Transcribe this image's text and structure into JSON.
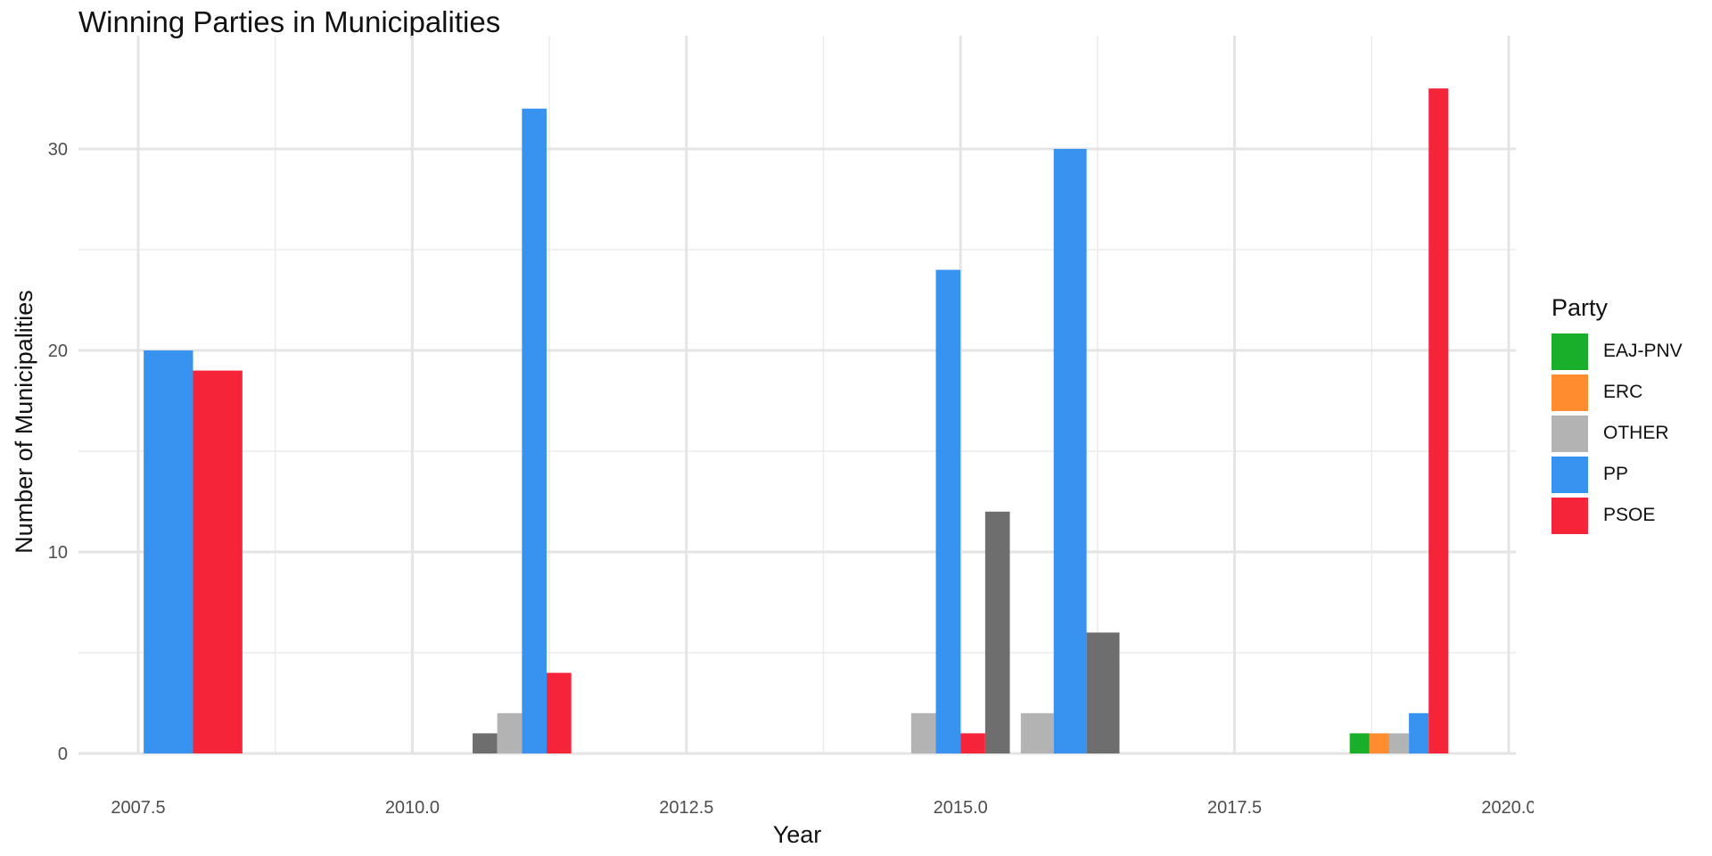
{
  "chart_data": {
    "type": "bar",
    "title": "Winning Parties in Municipalities",
    "xlabel": "Year",
    "ylabel": "Number of Municipalities",
    "xlim": [
      2007.0,
      2020.0
    ],
    "ylim": [
      0,
      35
    ],
    "x_ticks": [
      2007.5,
      2010.0,
      2012.5,
      2015.0,
      2017.5,
      2020.0
    ],
    "x_tick_labels": [
      "2007.5",
      "2010.0",
      "2012.5",
      "2015.0",
      "2017.5",
      "2020.0"
    ],
    "y_ticks": [
      0,
      10,
      20,
      30
    ],
    "y_tick_labels": [
      "0",
      "10",
      "20",
      "30"
    ],
    "grid": true,
    "legend": {
      "title": "Party",
      "position": "right",
      "entries": [
        {
          "name": "EAJ-PNV",
          "color": "#1aaf2b"
        },
        {
          "name": "ERC",
          "color": "#ff8c2e"
        },
        {
          "name": "OTHER",
          "color": "#b3b3b3"
        },
        {
          "name": "PP",
          "color": "#3892f0"
        },
        {
          "name": "PSOE",
          "color": "#f52438"
        }
      ]
    },
    "unlabeled_color": "#6e6e6e",
    "groups": [
      {
        "year": 2008,
        "bars": [
          {
            "party": "PP",
            "value": 20
          },
          {
            "party": "PSOE",
            "value": 19
          }
        ]
      },
      {
        "year": 2011,
        "bars": [
          {
            "party": "",
            "value": 1
          },
          {
            "party": "OTHER",
            "value": 2
          },
          {
            "party": "PP",
            "value": 32
          },
          {
            "party": "PSOE",
            "value": 4
          }
        ]
      },
      {
        "year": 2015,
        "bars": [
          {
            "party": "OTHER",
            "value": 2
          },
          {
            "party": "PP",
            "value": 24
          },
          {
            "party": "PSOE",
            "value": 1
          },
          {
            "party": "",
            "value": 12
          }
        ]
      },
      {
        "year": 2016,
        "bars": [
          {
            "party": "OTHER",
            "value": 2
          },
          {
            "party": "PP",
            "value": 30
          },
          {
            "party": "",
            "value": 6
          }
        ]
      },
      {
        "year": 2019,
        "bars": [
          {
            "party": "EAJ-PNV",
            "value": 1
          },
          {
            "party": "ERC",
            "value": 1
          },
          {
            "party": "OTHER",
            "value": 1
          },
          {
            "party": "PP",
            "value": 2
          },
          {
            "party": "PSOE",
            "value": 33
          }
        ]
      }
    ]
  }
}
